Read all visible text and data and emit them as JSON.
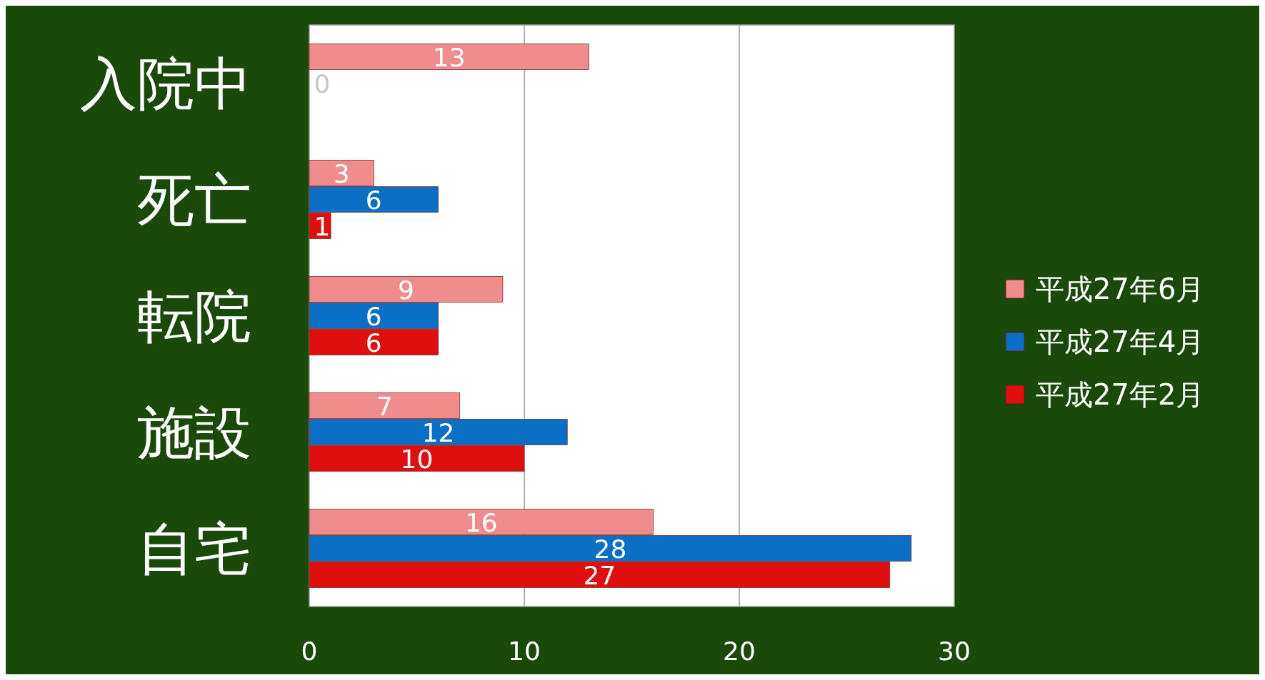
{
  "chart_data": {
    "type": "bar",
    "orientation": "horizontal",
    "categories": [
      "入院中",
      "死亡",
      "転院",
      "施設",
      "自宅"
    ],
    "series": [
      {
        "name": "平成27年6月",
        "color": "#f08c8c",
        "values": [
          13,
          3,
          9,
          7,
          16
        ],
        "value_labels": [
          "13",
          "3",
          "9",
          "7",
          "16"
        ]
      },
      {
        "name": "平成27年4月",
        "color": "#0b6fc6",
        "values": [
          0,
          6,
          6,
          12,
          28
        ],
        "value_labels": [
          "0",
          "6",
          "6",
          "12",
          "28"
        ]
      },
      {
        "name": "平成27年2月",
        "color": "#e00f0f",
        "values": [
          null,
          1,
          6,
          10,
          27
        ],
        "value_labels": [
          null,
          "1",
          "6",
          "10",
          "27"
        ]
      }
    ],
    "xlim": [
      0,
      30
    ],
    "xticks": [
      0,
      10,
      20,
      30
    ],
    "grid": "x",
    "legend": "right"
  }
}
